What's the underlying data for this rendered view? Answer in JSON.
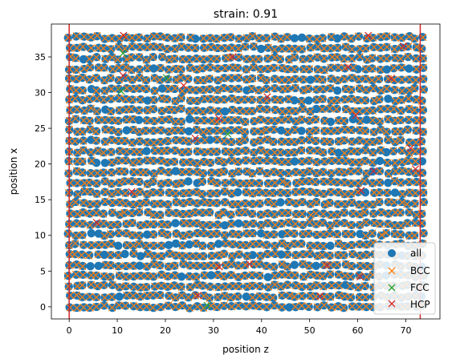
{
  "chart_data": {
    "type": "scatter",
    "title": "strain: 0.91",
    "xlabel": "position z",
    "ylabel": "position x",
    "xlim": [
      -3.7,
      77.1
    ],
    "ylim": [
      -1.7,
      39.6
    ],
    "xticks": [
      0,
      10,
      20,
      30,
      40,
      50,
      60,
      70
    ],
    "yticks": [
      0,
      5,
      10,
      15,
      20,
      25,
      30,
      35
    ],
    "grid": false,
    "legend_position": "bottom-right",
    "boundary_lines": {
      "x": [
        0,
        73
      ],
      "color": "#d62728"
    },
    "lattice": {
      "z_step": 1.47,
      "x_step": 1.45,
      "z_count": 51,
      "x_count": 27,
      "note_marker_color_all": "#1f77b4"
    },
    "series": [
      {
        "name": "all",
        "marker": "circle",
        "color": "#1f77b4"
      },
      {
        "name": "BCC",
        "marker": "x",
        "color": "#ff7f0e"
      },
      {
        "name": "FCC",
        "marker": "x",
        "color": "#2ca02c",
        "points": [
          [
            11.2,
            35.5
          ],
          [
            20.2,
            32.1
          ],
          [
            10.8,
            30.2
          ],
          [
            28.7,
            0.2
          ],
          [
            33.0,
            24.2
          ]
        ]
      },
      {
        "name": "HCP",
        "marker": "x",
        "color": "#d62728",
        "points": [
          [
            11.3,
            38.0
          ],
          [
            11.2,
            32.4
          ],
          [
            23.8,
            31.0
          ],
          [
            34.0,
            35.0
          ],
          [
            41.2,
            29.4
          ],
          [
            58.0,
            33.6
          ],
          [
            67.0,
            32.0
          ],
          [
            69.5,
            36.5
          ],
          [
            62.2,
            38.0
          ],
          [
            31.1,
            26.4
          ],
          [
            26.2,
            23.6
          ],
          [
            59.6,
            26.8
          ],
          [
            71.0,
            22.2
          ],
          [
            72.0,
            19.3
          ],
          [
            63.3,
            19.0
          ],
          [
            13.0,
            16.1
          ],
          [
            60.7,
            16.3
          ],
          [
            5.7,
            11.8
          ],
          [
            31.2,
            5.6
          ],
          [
            37.5,
            6.0
          ],
          [
            53.6,
            5.8
          ],
          [
            60.5,
            4.2
          ],
          [
            52.2,
            1.5
          ],
          [
            26.8,
            1.6
          ]
        ]
      }
    ]
  }
}
